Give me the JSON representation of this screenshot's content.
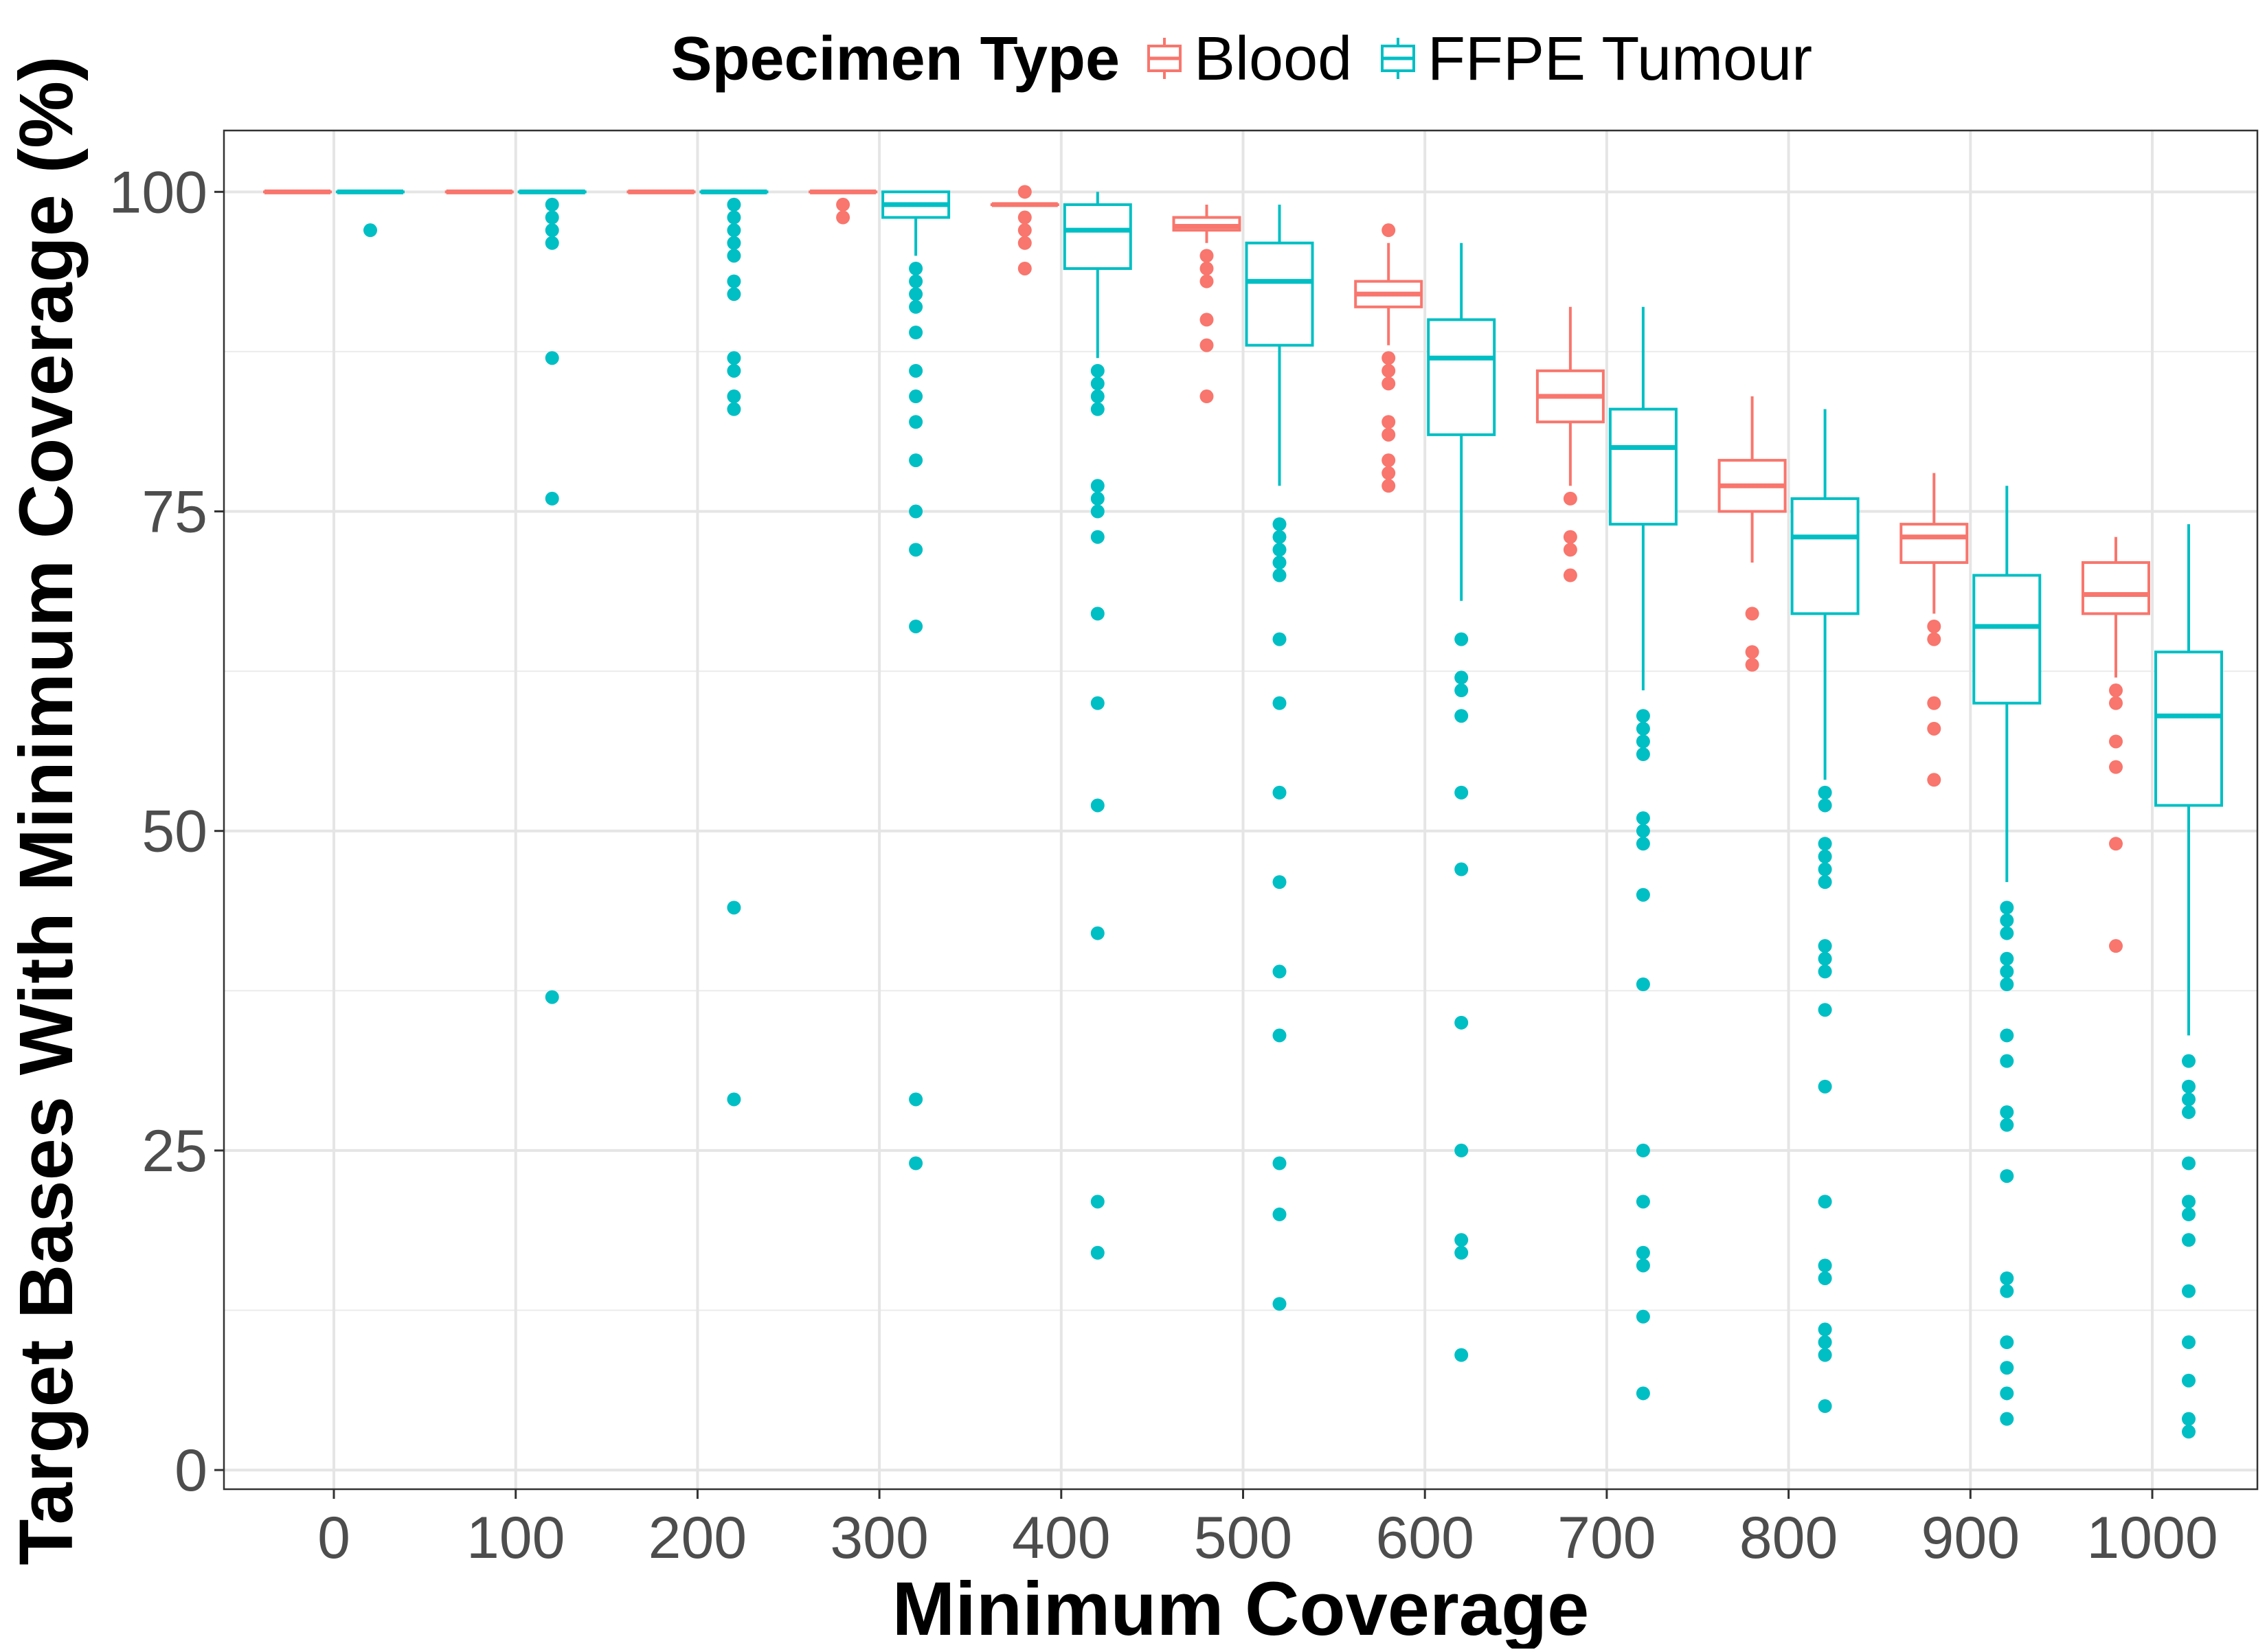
{
  "chart_data": {
    "type": "box",
    "xlabel": "Minimum Coverage",
    "ylabel": "Target Bases With Minimum Coverage (%)",
    "legend": {
      "title": "Specimen Type",
      "placement": "top",
      "entries": [
        "Blood",
        "FFPE Tumour"
      ]
    },
    "colors": {
      "Blood": "#F8766D",
      "FFPE Tumour": "#00BFC4"
    },
    "grid": true,
    "x_ticks": [
      "0",
      "100",
      "200",
      "300",
      "400",
      "500",
      "600",
      "700",
      "800",
      "900",
      "1000"
    ],
    "y_ticks": [
      "0",
      "25",
      "50",
      "75",
      "100"
    ],
    "ylim": [
      -1.5,
      104.8
    ],
    "series": [
      {
        "name": "Blood",
        "boxes": [
          {
            "x": 0,
            "min": 100,
            "q1": 100,
            "median": 100,
            "q3": 100,
            "max": 100,
            "outliers": []
          },
          {
            "x": 100,
            "min": 100,
            "q1": 100,
            "median": 100,
            "q3": 100,
            "max": 100,
            "outliers": []
          },
          {
            "x": 200,
            "min": 100,
            "q1": 100,
            "median": 100,
            "q3": 100,
            "max": 100,
            "outliers": []
          },
          {
            "x": 300,
            "min": 100,
            "q1": 100,
            "median": 100,
            "q3": 100,
            "max": 100,
            "outliers": [
              99,
              98
            ]
          },
          {
            "x": 400,
            "min": 99,
            "q1": 99,
            "median": 99,
            "q3": 99,
            "max": 99,
            "outliers": [
              100,
              98,
              97,
              96,
              94
            ]
          },
          {
            "x": 500,
            "min": 96,
            "q1": 97,
            "median": 97.3,
            "q3": 98,
            "max": 99,
            "outliers": [
              95,
              94,
              93,
              90,
              88,
              84
            ]
          },
          {
            "x": 600,
            "min": 88,
            "q1": 91,
            "median": 92,
            "q3": 93,
            "max": 96,
            "outliers": [
              97,
              87,
              86,
              85,
              82,
              81,
              79,
              78,
              77
            ]
          },
          {
            "x": 700,
            "min": 77,
            "q1": 82,
            "median": 84,
            "q3": 86,
            "max": 91,
            "outliers": [
              76,
              73,
              72,
              70
            ]
          },
          {
            "x": 800,
            "min": 71,
            "q1": 75,
            "median": 77,
            "q3": 79,
            "max": 84,
            "outliers": [
              67,
              64,
              63
            ]
          },
          {
            "x": 900,
            "min": 67,
            "q1": 71,
            "median": 73,
            "q3": 74,
            "max": 78,
            "outliers": [
              66,
              65,
              60,
              58,
              54
            ]
          },
          {
            "x": 1000,
            "min": 62,
            "q1": 67,
            "median": 68.5,
            "q3": 71,
            "max": 73,
            "outliers": [
              61,
              60,
              57,
              55,
              49,
              41
            ]
          }
        ]
      },
      {
        "name": "FFPE Tumour",
        "boxes": [
          {
            "x": 0,
            "min": 100,
            "q1": 100,
            "median": 100,
            "q3": 100,
            "max": 100,
            "outliers": [
              97
            ]
          },
          {
            "x": 100,
            "min": 100,
            "q1": 100,
            "median": 100,
            "q3": 100,
            "max": 100,
            "outliers": [
              99,
              98,
              97,
              96,
              87,
              76,
              37
            ]
          },
          {
            "x": 200,
            "min": 100,
            "q1": 100,
            "median": 100,
            "q3": 100,
            "max": 100,
            "outliers": [
              99,
              98,
              97,
              96,
              95,
              93,
              92,
              87,
              86,
              84,
              83,
              44,
              29
            ]
          },
          {
            "x": 300,
            "min": 95,
            "q1": 98,
            "median": 99,
            "q3": 100,
            "max": 100,
            "outliers": [
              94,
              93,
              92,
              91,
              89,
              86,
              84,
              82,
              79,
              75,
              72,
              66,
              29,
              24
            ]
          },
          {
            "x": 400,
            "min": 87,
            "q1": 94,
            "median": 97,
            "q3": 99,
            "max": 100,
            "outliers": [
              86,
              85,
              84,
              83,
              77,
              76,
              75,
              73,
              67,
              60,
              52,
              42,
              21,
              17
            ]
          },
          {
            "x": 500,
            "min": 77,
            "q1": 88,
            "median": 93,
            "q3": 96,
            "max": 99,
            "outliers": [
              74,
              73,
              72,
              71,
              70,
              65,
              60,
              53,
              46,
              39,
              34,
              24,
              20,
              13
            ]
          },
          {
            "x": 600,
            "min": 68,
            "q1": 81,
            "median": 87,
            "q3": 90,
            "max": 96,
            "outliers": [
              65,
              62,
              61,
              59,
              53,
              47,
              35,
              25,
              18,
              17,
              9
            ]
          },
          {
            "x": 700,
            "min": 61,
            "q1": 74,
            "median": 80,
            "q3": 83,
            "max": 91,
            "outliers": [
              59,
              58,
              57,
              56,
              51,
              50,
              49,
              45,
              38,
              25,
              21,
              17,
              16,
              12,
              6
            ]
          },
          {
            "x": 800,
            "min": 54,
            "q1": 67,
            "median": 73,
            "q3": 76,
            "max": 83,
            "outliers": [
              53,
              52,
              49,
              48,
              47,
              46,
              41,
              40,
              39,
              36,
              30,
              21,
              16,
              15,
              11,
              10,
              9,
              5
            ]
          },
          {
            "x": 900,
            "min": 46,
            "q1": 60,
            "median": 66,
            "q3": 70,
            "max": 77,
            "outliers": [
              44,
              43,
              42,
              40,
              39,
              38,
              34,
              32,
              28,
              27,
              23,
              15,
              14,
              10,
              8,
              6,
              4
            ]
          },
          {
            "x": 1000,
            "min": 34,
            "q1": 52,
            "median": 59,
            "q3": 64,
            "max": 74,
            "outliers": [
              32,
              30,
              29,
              28,
              24,
              21,
              20,
              18,
              14,
              10,
              7,
              4,
              3
            ]
          }
        ]
      }
    ]
  }
}
